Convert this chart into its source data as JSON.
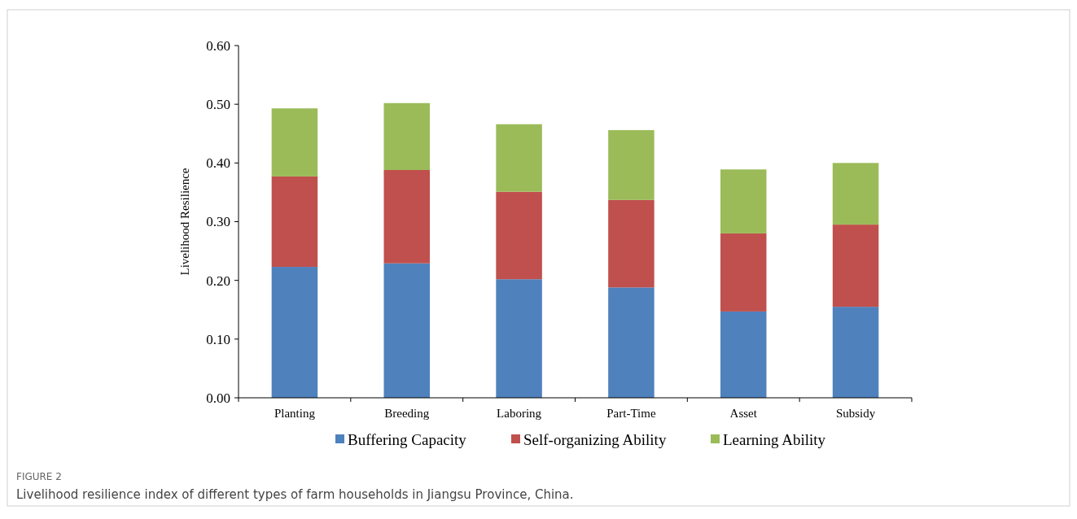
{
  "chart_data": {
    "type": "bar",
    "stacked": true,
    "ylabel": "Livelihood Resilience",
    "categories": [
      "Planting",
      "Breeding",
      "Laboring",
      "Part-Time",
      "Asset",
      "Subsidy"
    ],
    "series": [
      {
        "name": "Buffering Capacity",
        "color": "#4f81bd",
        "values": [
          0.223,
          0.229,
          0.202,
          0.188,
          0.147,
          0.155
        ]
      },
      {
        "name": "Self-organizing Ability",
        "color": "#c0504d",
        "values": [
          0.154,
          0.159,
          0.149,
          0.149,
          0.133,
          0.14
        ]
      },
      {
        "name": "Learning Ability",
        "color": "#9bbb59",
        "values": [
          0.116,
          0.114,
          0.115,
          0.119,
          0.109,
          0.105
        ]
      }
    ],
    "ylim": [
      0,
      0.6
    ],
    "yticks": [
      {
        "value": 0,
        "label": "0.00"
      },
      {
        "value": 0.1,
        "label": "0.10"
      },
      {
        "value": 0.2,
        "label": "0.20"
      },
      {
        "value": 0.3,
        "label": "0.30"
      },
      {
        "value": 0.4,
        "label": "0.40"
      },
      {
        "value": 0.5,
        "label": "0.50"
      },
      {
        "value": 0.6,
        "label": "0.60"
      }
    ],
    "legend": "bottom",
    "grid": false,
    "annotations": [
      "FIGURE 2",
      "Livelihood resilience index of different types of farm households in Jiangsu Province, China."
    ]
  }
}
